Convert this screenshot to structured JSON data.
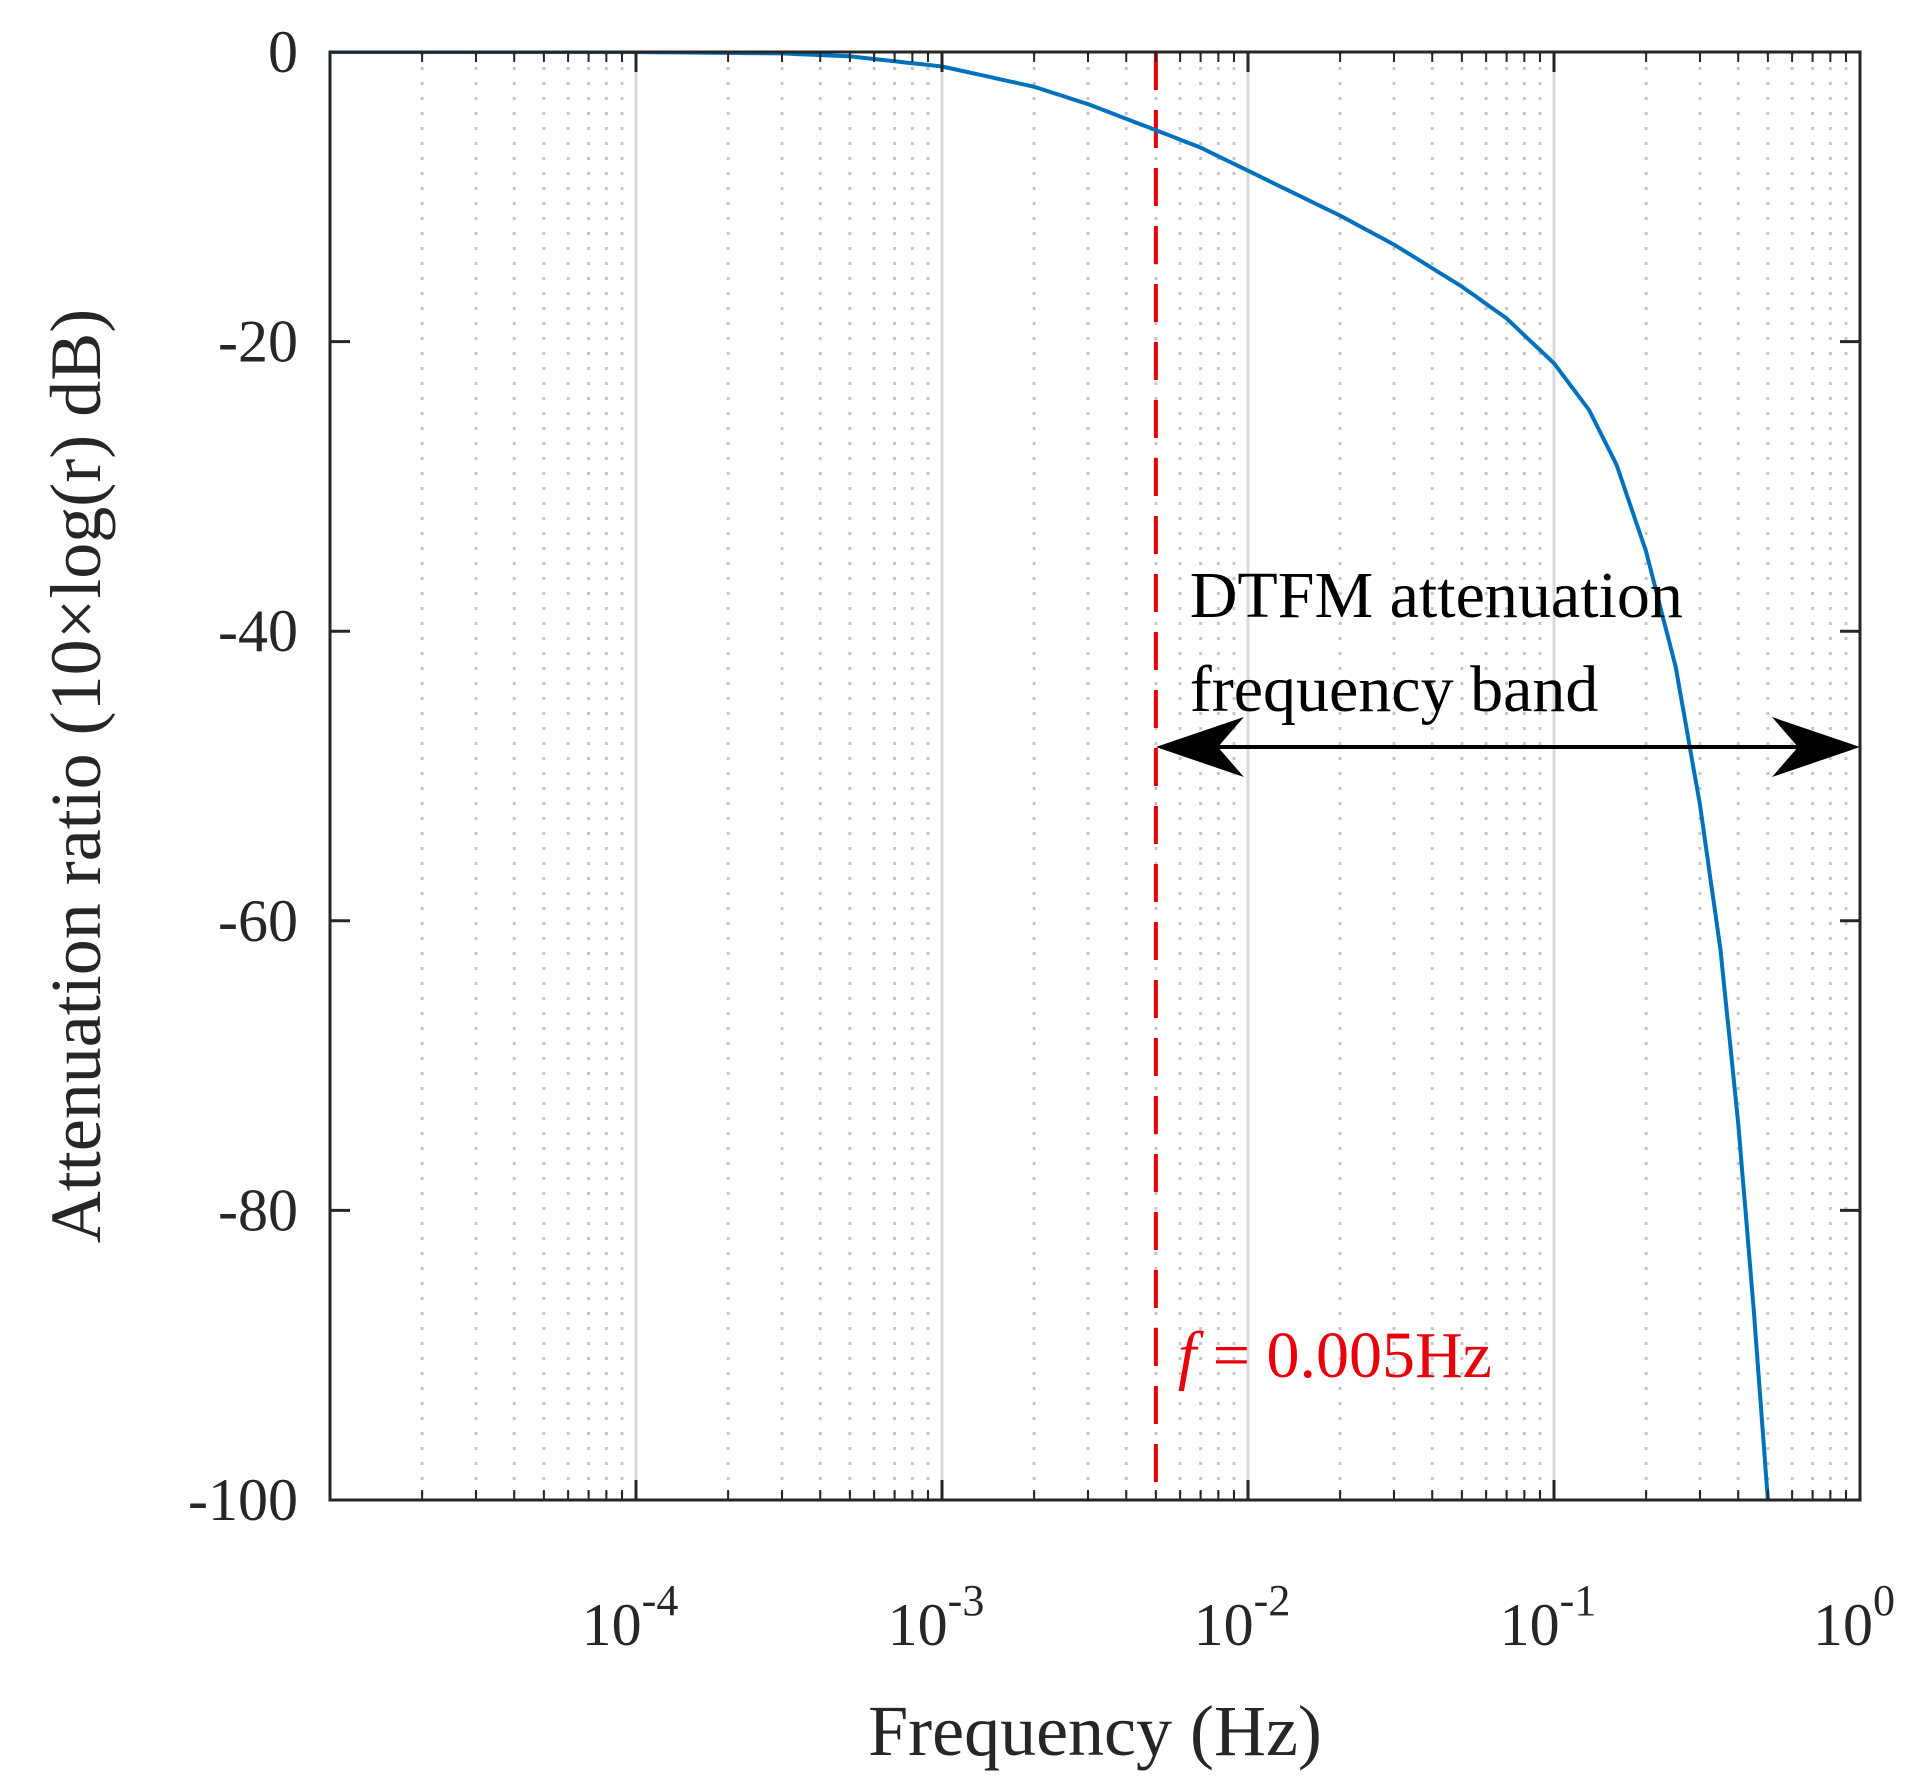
{
  "chart_data": {
    "type": "line",
    "xscale": "log",
    "xlabel": "Frequency (Hz)",
    "ylabel": "Attenuation ratio (10×log(r) dB)",
    "xlim": [
      1e-05,
      1
    ],
    "ylim": [
      -100,
      0
    ],
    "grid": true,
    "x_ticks": [
      {
        "value": 0.0001,
        "base": "10",
        "exp": "-4"
      },
      {
        "value": 0.001,
        "base": "10",
        "exp": "-3"
      },
      {
        "value": 0.01,
        "base": "10",
        "exp": "-2"
      },
      {
        "value": 0.1,
        "base": "10",
        "exp": "-1"
      },
      {
        "value": 1,
        "base": "10",
        "exp": "0"
      }
    ],
    "y_ticks": [
      {
        "value": 0,
        "label": "0"
      },
      {
        "value": -20,
        "label": "-20"
      },
      {
        "value": -40,
        "label": "-40"
      },
      {
        "value": -60,
        "label": "-60"
      },
      {
        "value": -80,
        "label": "-80"
      },
      {
        "value": -100,
        "label": "-100"
      }
    ],
    "series": [
      {
        "name": "attenuation",
        "color": "#0072BD",
        "x": [
          1e-05,
          0.0001,
          0.0003,
          0.0005,
          0.001,
          0.002,
          0.003,
          0.005,
          0.007,
          0.01,
          0.02,
          0.03,
          0.05,
          0.07,
          0.1,
          0.13,
          0.16,
          0.2,
          0.25,
          0.3,
          0.35,
          0.4,
          0.45,
          0.5
        ],
        "y": [
          0,
          0,
          -0.1,
          -0.3,
          -1,
          -2.4,
          -3.6,
          -5.4,
          -6.6,
          -8.2,
          -11.3,
          -13.3,
          -16.2,
          -18.4,
          -21.5,
          -24.7,
          -28.5,
          -34.5,
          -42.5,
          -52,
          -62,
          -74,
          -87,
          -100
        ]
      }
    ],
    "reference_line": {
      "x": 0.005,
      "color": "#E8000B",
      "label_italic": "f",
      "label_rest": " = 0.005Hz",
      "label_y": -90
    },
    "band_arrow": {
      "x_start": 0.005,
      "x_end": 1,
      "y": -48,
      "color": "#000000",
      "label_line1": "DTFM attenuation",
      "label_line2": "frequency band",
      "label_x": 0.0075,
      "label_y1": -37.5,
      "label_y2": -44
    }
  }
}
